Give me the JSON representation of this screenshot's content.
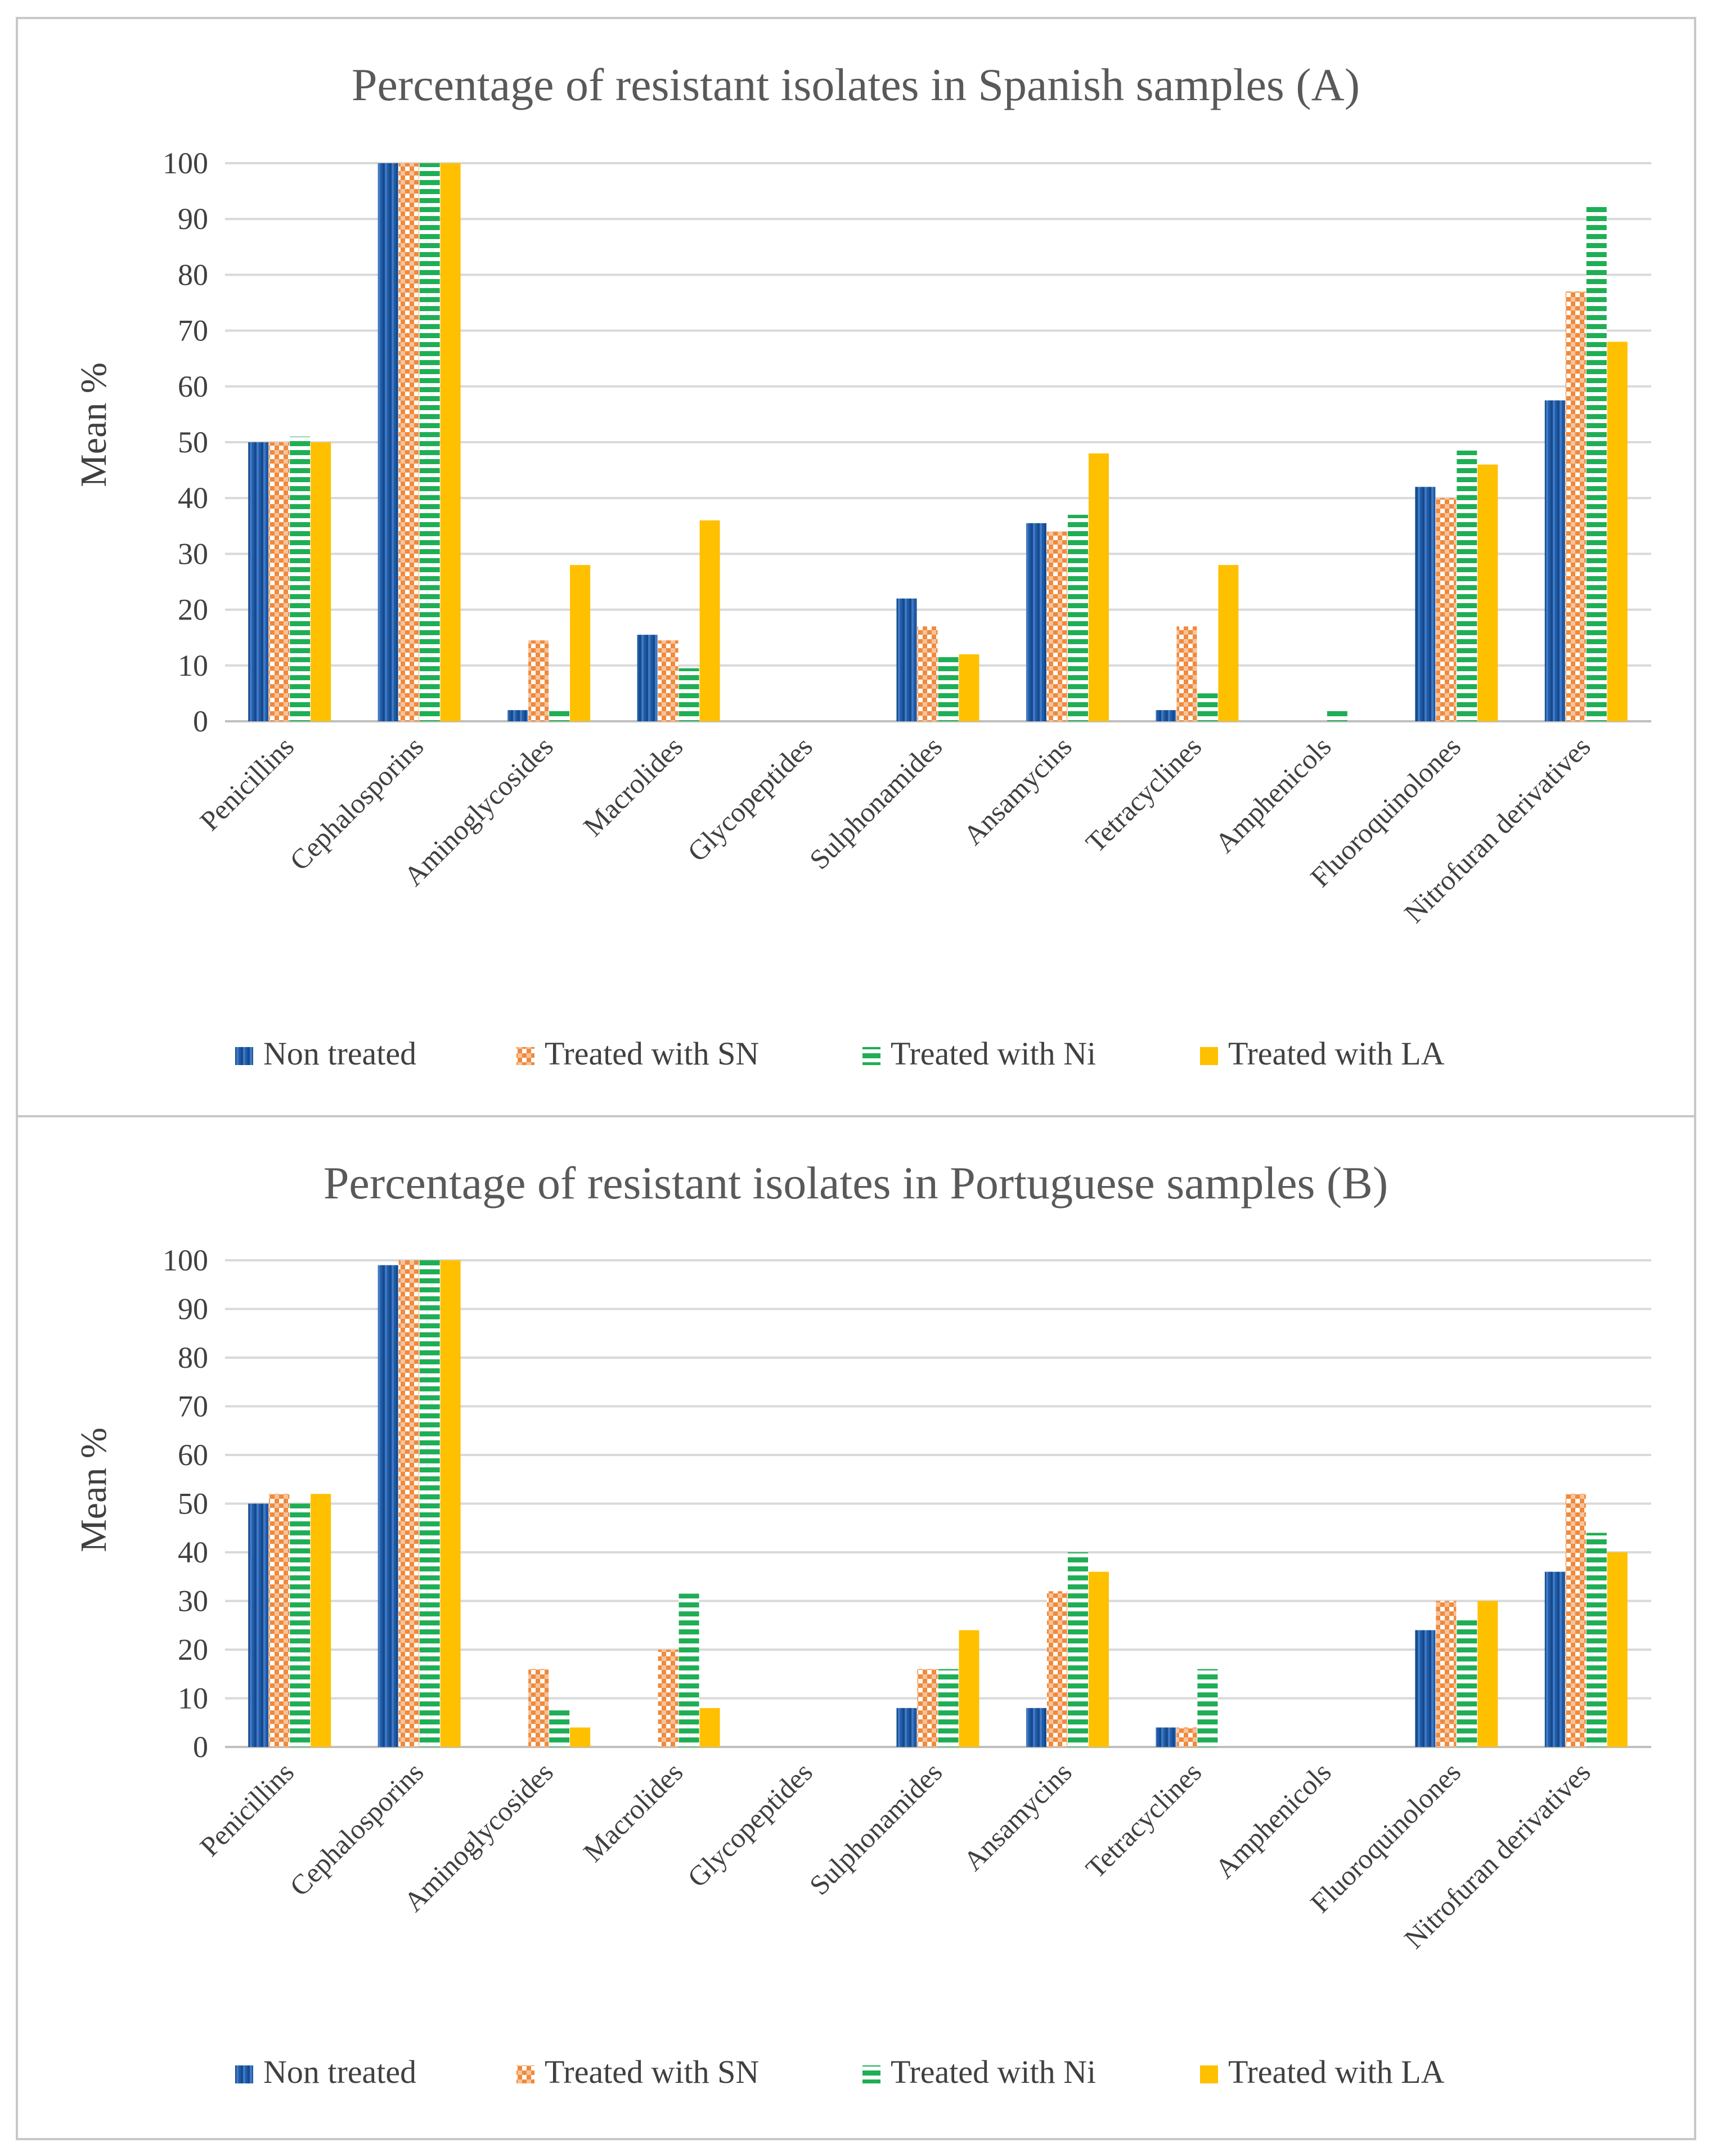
{
  "colors": {
    "non_treated": "#1f5aa6",
    "treated_sn": "#f08a3c",
    "treated_ni": "#1fae55",
    "treated_la": "#ffc000"
  },
  "chart_data": [
    {
      "type": "bar",
      "title": "Percentage of resistant isolates in Spanish samples (A)",
      "ylabel": "Mean %",
      "xlabel": "",
      "ylim": [
        0,
        100
      ],
      "yticks": [
        0,
        10,
        20,
        30,
        40,
        50,
        60,
        70,
        80,
        90,
        100
      ],
      "grid": true,
      "legend_position": "bottom",
      "categories": [
        "Penicillins",
        "Cephalosporins",
        "Aminoglycosides",
        "Macrolides",
        "Glycopeptides",
        "Sulphonamides",
        "Ansamycins",
        "Tetracyclines",
        "Amphenicols",
        "Fluoroquinolones",
        "Nitrofuran derivatives"
      ],
      "series": [
        {
          "name": "Non treated",
          "color": "#1f5aa6",
          "pattern": "solid",
          "values": [
            50,
            100,
            2,
            15.5,
            0,
            22,
            35.5,
            2,
            0,
            42,
            57.5
          ]
        },
        {
          "name": "Treated with SN",
          "color": "#f08a3c",
          "pattern": "checker",
          "values": [
            50,
            100,
            14.5,
            14.5,
            0,
            17,
            34,
            17,
            0,
            40,
            77
          ]
        },
        {
          "name": "Treated with Ni",
          "color": "#1fae55",
          "pattern": "stripes",
          "values": [
            51,
            100,
            2.5,
            9.5,
            0,
            12,
            37,
            5,
            2.5,
            48.5,
            92.5
          ]
        },
        {
          "name": "Treated with LA",
          "color": "#ffc000",
          "pattern": "solid",
          "values": [
            50,
            100,
            28,
            36,
            0,
            12,
            48,
            28,
            0,
            46,
            68
          ]
        }
      ]
    },
    {
      "type": "bar",
      "title": "Percentage of resistant isolates in Portuguese samples (B)",
      "ylabel": "Mean %",
      "xlabel": "",
      "ylim": [
        0,
        100
      ],
      "yticks": [
        0,
        10,
        20,
        30,
        40,
        50,
        60,
        70,
        80,
        90,
        100
      ],
      "grid": true,
      "legend_position": "bottom",
      "categories": [
        "Penicillins",
        "Cephalosporins",
        "Aminoglycosides",
        "Macrolides",
        "Glycopeptides",
        "Sulphonamides",
        "Ansamycins",
        "Tetracyclines",
        "Amphenicols",
        "Fluoroquinolones",
        "Nitrofuran derivatives"
      ],
      "series": [
        {
          "name": "Non treated",
          "color": "#1f5aa6",
          "pattern": "solid",
          "values": [
            50,
            99,
            0,
            0,
            0,
            8,
            8,
            4,
            0,
            24,
            36
          ]
        },
        {
          "name": "Treated with SN",
          "color": "#f08a3c",
          "pattern": "checker",
          "values": [
            52,
            100,
            16,
            20,
            0,
            16,
            32,
            4,
            0,
            30,
            52
          ]
        },
        {
          "name": "Treated with Ni",
          "color": "#1fae55",
          "pattern": "stripes",
          "values": [
            50,
            100,
            8,
            31.5,
            0,
            16,
            40,
            16,
            0,
            26.5,
            44
          ]
        },
        {
          "name": "Treated with LA",
          "color": "#ffc000",
          "pattern": "solid",
          "values": [
            52,
            100,
            4,
            8,
            0,
            24,
            36,
            0,
            0,
            30,
            40
          ]
        }
      ]
    }
  ]
}
